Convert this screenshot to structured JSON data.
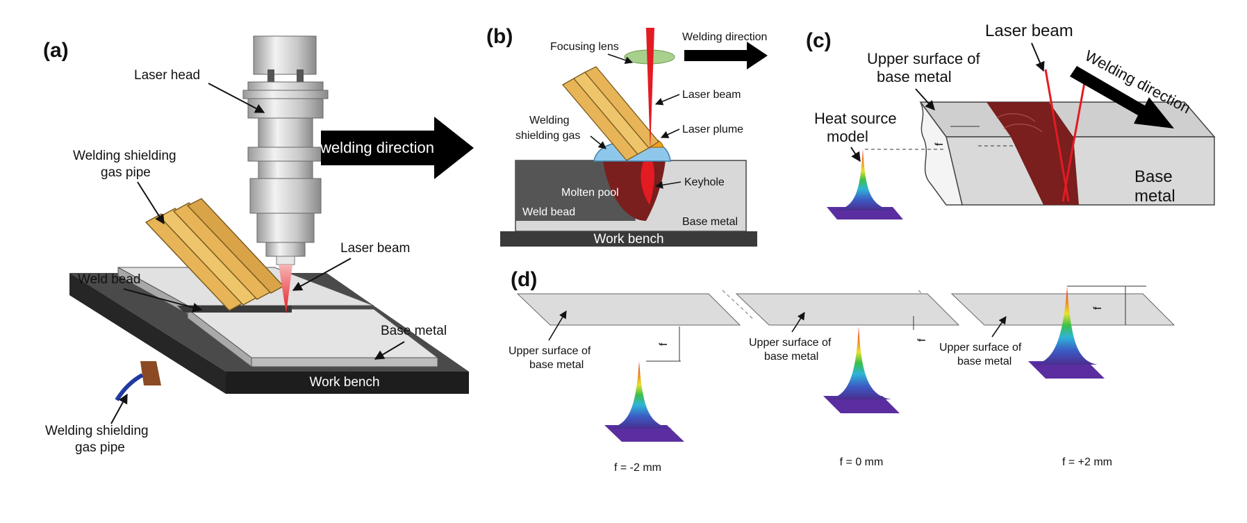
{
  "panels": {
    "a": "(a)",
    "b": "(b)",
    "c": "(c)",
    "d": "(d)"
  },
  "panel_a": {
    "laser_head": "Laser head",
    "gas_pipe_top_l1": "Welding shielding",
    "gas_pipe_top_l2": "gas pipe",
    "laser_beam": "Laser beam",
    "weld_bead": "Weld bead",
    "base_metal": "Base metal",
    "gas_pipe_bottom_l1": "Welding shielding",
    "gas_pipe_bottom_l2": "gas pipe",
    "work_bench": "Work bench",
    "welding_direction": "welding direction"
  },
  "panel_b": {
    "focusing_lens": "Focusing lens",
    "welding_direction": "Welding direction",
    "laser_beam": "Laser beam",
    "laser_plume": "Laser plume",
    "gas_l1": "Welding",
    "gas_l2": "shielding gas",
    "molten_pool": "Molten pool",
    "keyhole": "Keyhole",
    "weld_bead": "Weld bead",
    "base_metal": "Base metal",
    "work_bench": "Work bench"
  },
  "panel_c": {
    "laser_beam": "Laser beam",
    "upper_l1": "Upper surface of",
    "upper_l2": "base metal",
    "welding_direction": "Welding direction",
    "heat_l1": "Heat source",
    "heat_l2": "model",
    "f_symbol": "f",
    "base_l1": "Base",
    "base_l2": "metal"
  },
  "panel_d": {
    "upper_l1": "Upper surface of",
    "upper_l2": "base metal",
    "f_symbol": "f",
    "cases": [
      "f = -2 mm",
      "f = 0 mm",
      "f = +2 mm"
    ]
  },
  "colors": {
    "weld_red": "#7a1e1e",
    "laser_red": "#e31b23",
    "gas_blue": "#8ec7ea",
    "plume_orange": "#f2a020",
    "pipe_gold": "#e7b557",
    "bench_dark": "#333333",
    "plate_grey": "#dcdcdc"
  }
}
